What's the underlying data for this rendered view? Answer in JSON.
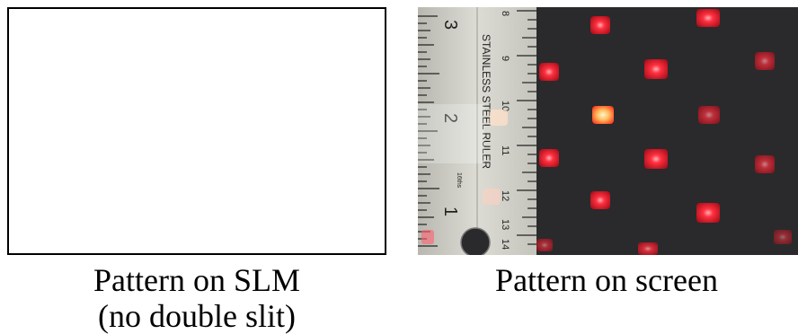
{
  "left_panel": {
    "caption_line1": "Pattern on SLM",
    "caption_line2": "(no double slit)",
    "fill_color": "#ffffff",
    "border_color": "#000000"
  },
  "right_panel": {
    "caption": "Pattern on screen",
    "ruler_label": "STAINLESS STEEL RULER",
    "ruler_big_numbers": [
      "3",
      "2",
      "1"
    ],
    "ruler_small_numbers": [
      "8",
      "9",
      "10",
      "11",
      "12",
      "13",
      "14"
    ],
    "ruler_unit_label": "16ths",
    "background_color": "#2a2a2c",
    "spot_color": "#ff2a3a",
    "ruler_color": "#c9c9c2"
  }
}
